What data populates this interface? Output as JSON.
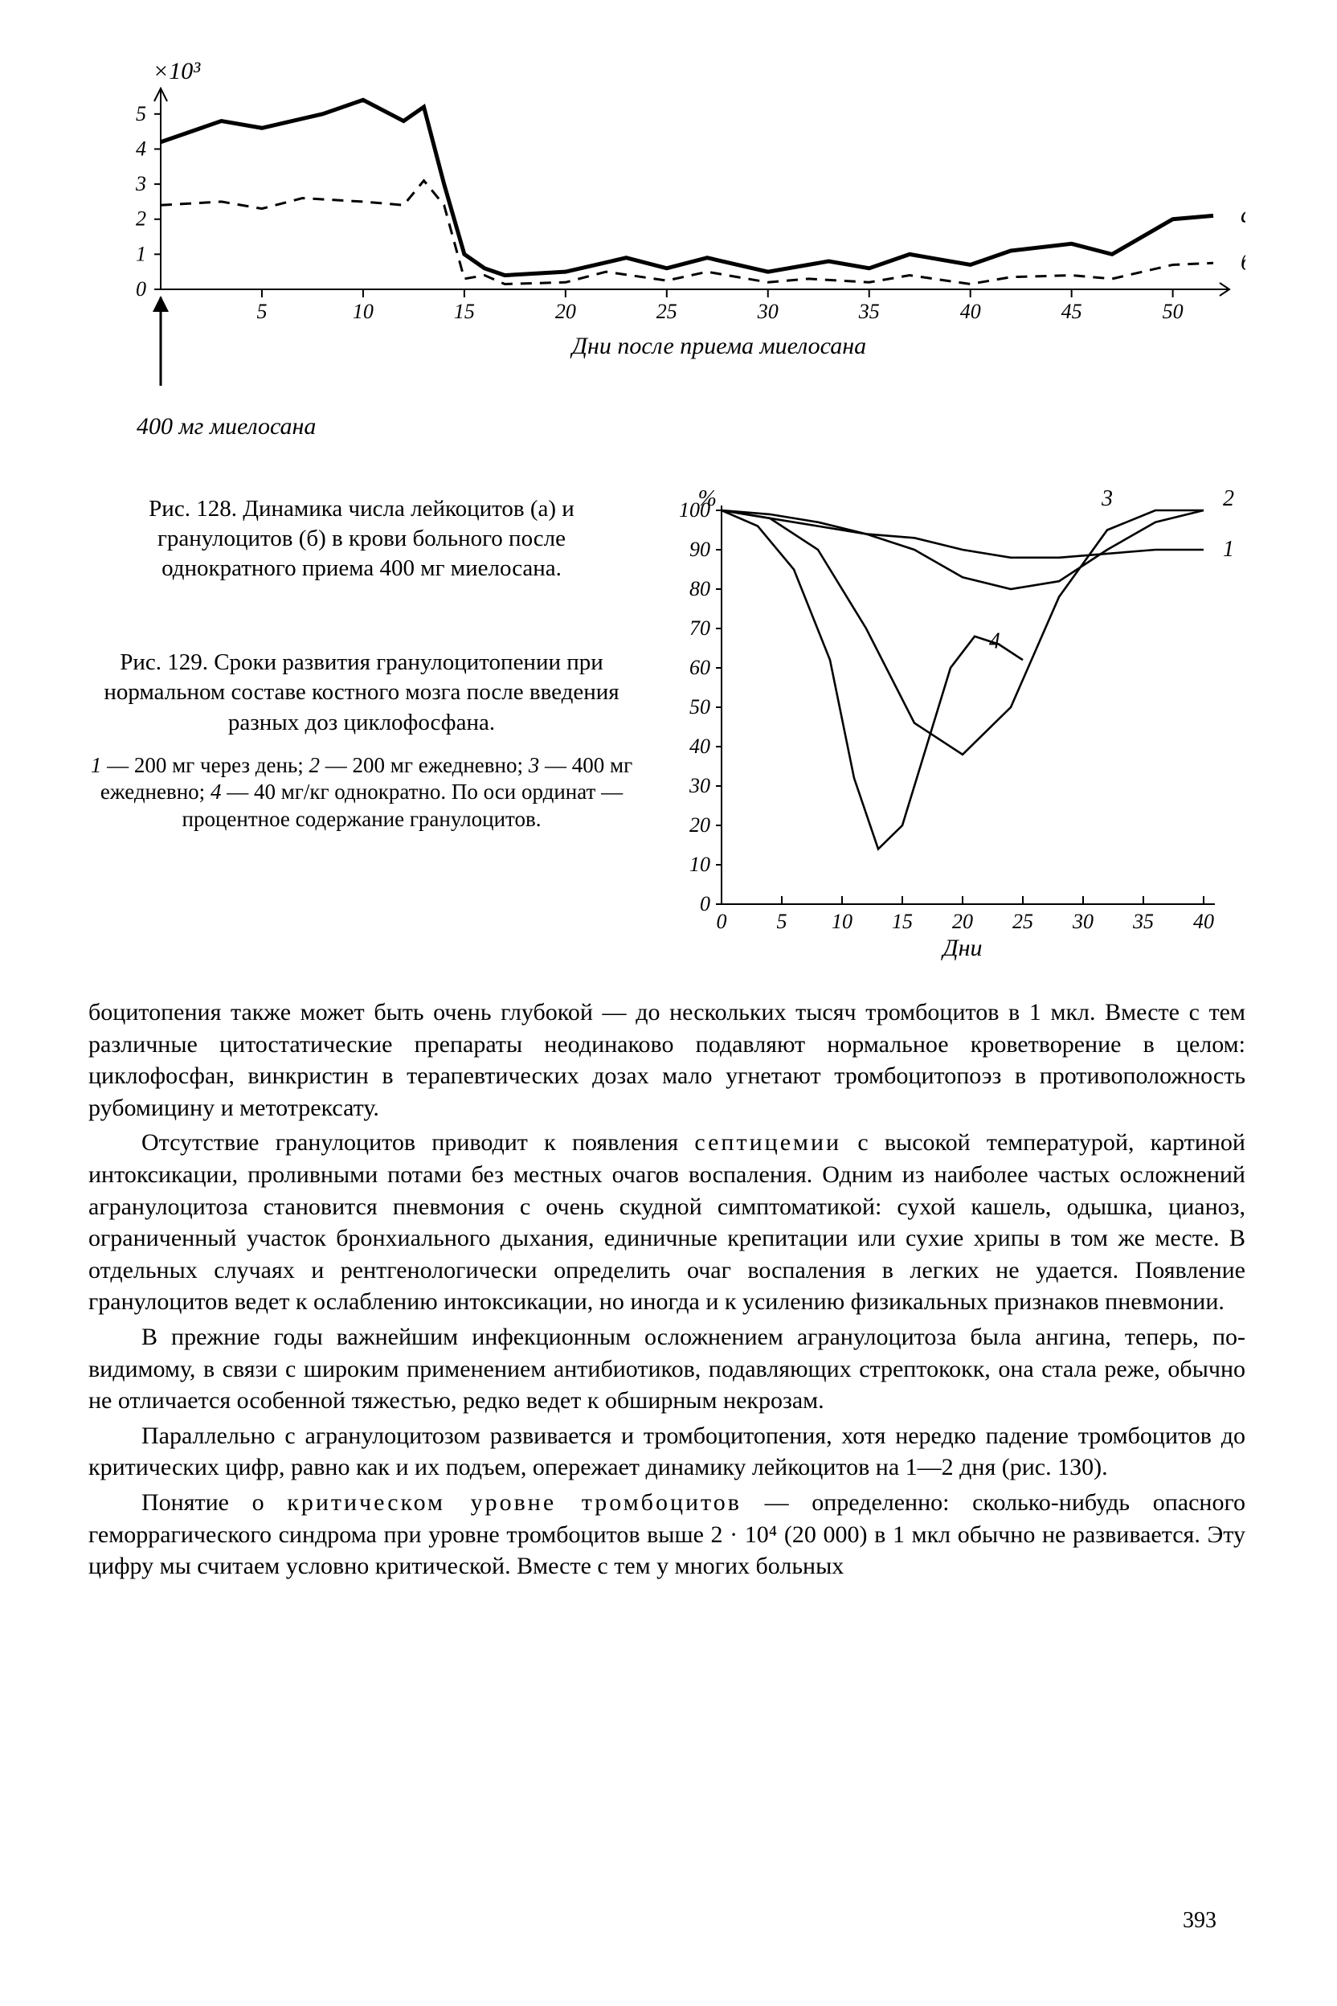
{
  "chart128": {
    "type": "line",
    "y_unit_label": "×10³",
    "x_axis_label": "Дни   после   приема   миелосана",
    "dose_arrow_label": "400 мг миелосана",
    "series_a_label": "а",
    "series_b_label": "б",
    "xlim": [
      0,
      52
    ],
    "ylim": [
      0,
      5.5
    ],
    "xtick_step": 5,
    "xtick_start": 5,
    "xtick_end": 50,
    "ytick_step": 1,
    "ytick_end": 5,
    "axis_color": "#000000",
    "background_color": "#ffffff",
    "line_width_a": 5,
    "line_width_b": 3,
    "dash_b": "14 10",
    "series_a": {
      "x": [
        0,
        3,
        5,
        8,
        10,
        12,
        13,
        14,
        15,
        16,
        17,
        20,
        23,
        25,
        27,
        30,
        33,
        35,
        37,
        40,
        42,
        45,
        47,
        50,
        52
      ],
      "y": [
        4.2,
        4.8,
        4.6,
        5.0,
        5.4,
        4.8,
        5.2,
        3.0,
        1.0,
        0.6,
        0.4,
        0.5,
        0.9,
        0.6,
        0.9,
        0.5,
        0.8,
        0.6,
        1.0,
        0.7,
        1.1,
        1.3,
        1.0,
        2.0,
        2.1
      ]
    },
    "series_b": {
      "x": [
        0,
        3,
        5,
        7,
        10,
        12,
        13,
        14,
        15,
        16,
        17,
        20,
        22,
        25,
        27,
        30,
        32,
        35,
        37,
        40,
        42,
        45,
        47,
        50,
        52
      ],
      "y": [
        2.4,
        2.5,
        2.3,
        2.6,
        2.5,
        2.4,
        3.1,
        2.4,
        0.3,
        0.4,
        0.15,
        0.2,
        0.5,
        0.25,
        0.5,
        0.2,
        0.3,
        0.2,
        0.4,
        0.15,
        0.35,
        0.4,
        0.3,
        0.7,
        0.75
      ]
    }
  },
  "caption128": "Рис. 128. Динамика числа лейкоцитов (а) и гранулоцитов (б) в крови больного после однократного приема 400 мг миелосана.",
  "caption129": "Рис. 129. Сроки развития гранулоцитопении при нормальном составе костного мозга после введения разных доз циклофосфана.",
  "legend129": "1 — 200 мг через день; 2 — 200 мг ежедневно; 3 — 400 мг ежедневно; 4 — 40 мг/кг однократно. По оси ординат — процентное содержание гранулоцитов.",
  "chart129": {
    "type": "line",
    "y_unit_label": "%",
    "x_axis_label": "Дни",
    "xlim": [
      0,
      40
    ],
    "ylim": [
      0,
      100
    ],
    "xtick_step": 5,
    "ytick_step": 10,
    "axis_color": "#000000",
    "background_color": "#ffffff",
    "line_width": 2.6,
    "label1": "1",
    "label2": "2",
    "label3": "3",
    "label4": "4",
    "s1": {
      "x": [
        0,
        4,
        8,
        12,
        16,
        20,
        24,
        28,
        32,
        36,
        40
      ],
      "y": [
        100,
        98,
        96,
        94,
        93,
        90,
        88,
        88,
        89,
        90,
        90
      ]
    },
    "s2": {
      "x": [
        0,
        4,
        8,
        12,
        16,
        20,
        24,
        28,
        32,
        36,
        40
      ],
      "y": [
        100,
        99,
        97,
        94,
        90,
        83,
        80,
        82,
        90,
        97,
        100
      ]
    },
    "s3": {
      "x": [
        0,
        4,
        8,
        12,
        16,
        20,
        24,
        28,
        32,
        36,
        40
      ],
      "y": [
        100,
        98,
        90,
        70,
        46,
        38,
        50,
        78,
        95,
        100,
        100
      ]
    },
    "s4": {
      "x": [
        0,
        3,
        6,
        9,
        11,
        13,
        15,
        17,
        19,
        21,
        23,
        25
      ],
      "y": [
        100,
        96,
        85,
        62,
        32,
        14,
        20,
        40,
        60,
        68,
        66,
        62
      ]
    }
  },
  "paragraphs": {
    "p1": "боцитопения также может быть очень глубокой — до нескольких тысяч тромбоцитов в 1 мкл. Вместе с тем различные цитостатические препараты неодинаково подавляют нормальное кроветворение в целом: циклофосфан, винкристин в терапевтических дозах мало угнетают тромбоцитопоэз в противоположность рубомицину и метотрексату.",
    "p2a": "Отсутствие гранулоцитов приводит к появления ",
    "p2b": "септицемии",
    "p2c": " с высокой температурой, картиной интоксикации, проливными потами без местных очагов воспаления. Одним из наиболее частых осложнений агранулоцитоза становится пневмония с очень скудной симптоматикой: сухой кашель, одышка, цианоз, ограниченный участок бронхиального дыхания, единичные крепитации или сухие хрипы в том же месте. В отдельных случаях и рентгенологически определить очаг воспаления в легких не удается. Появление гранулоцитов ведет к ослаблению интоксикации, но иногда и к усилению физикальных признаков пневмонии.",
    "p3": "В прежние годы важнейшим инфекционным осложнением агранулоцитоза была ангина, теперь, по-видимому, в связи с широким применением антибиотиков, подавляющих стрептококк, она стала реже, обычно не отличается особенной тяжестью, редко ведет к обширным некрозам.",
    "p4": "Параллельно с агранулоцитозом развивается и тромбоцитопения, хотя нередко падение тромбоцитов до критических цифр, равно как и их подъем, опережает динамику лейкоцитов на 1—2 дня (рис. 130).",
    "p5a": "Понятие о ",
    "p5b": "критическом уровне тромбоцитов",
    "p5c": " — определенно: сколько-нибудь опасного геморрагического синдрома при уровне тромбоцитов выше 2 · 10⁴ (20 000) в 1 мкл обычно не развивается. Эту цифру мы считаем условно критической. Вместе с тем у многих больных"
  },
  "page_number": "393"
}
